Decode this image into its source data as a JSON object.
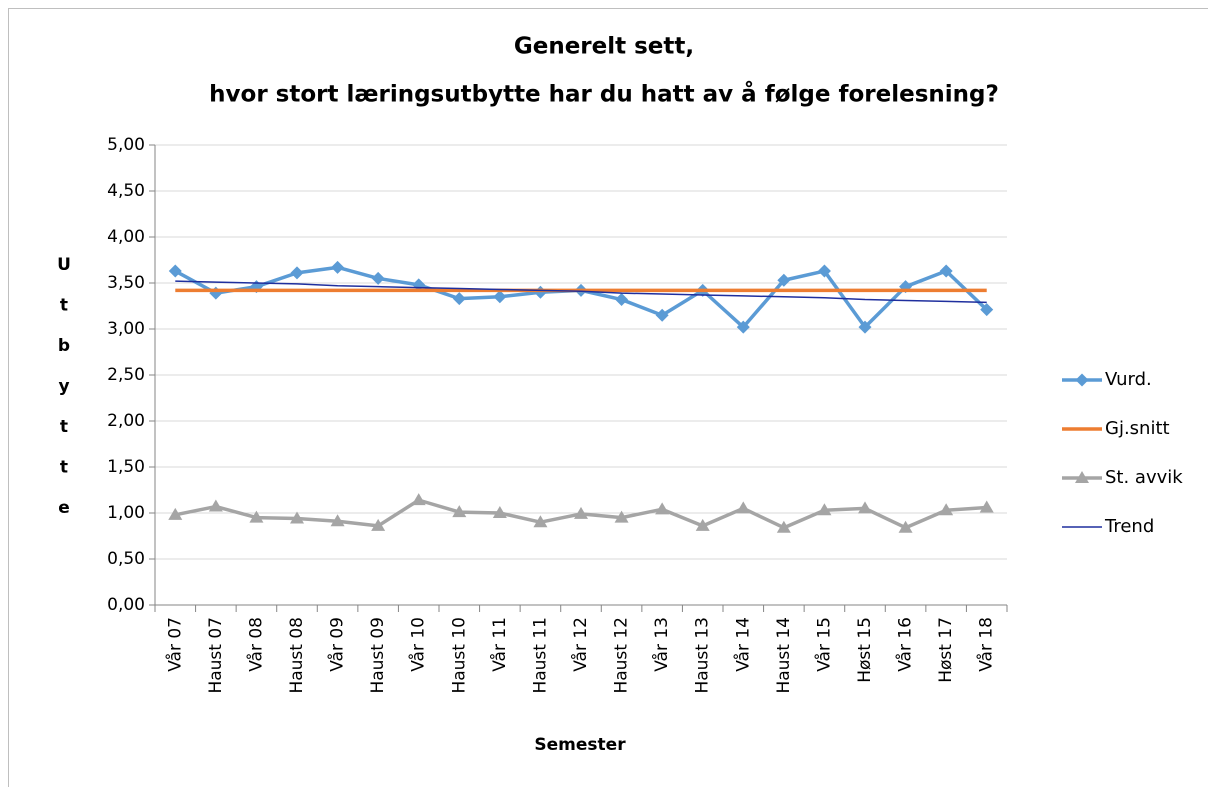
{
  "chart_data": {
    "type": "line",
    "title": [
      "Generelt sett,",
      "hvor stort læringsutbytte har du hatt av å følge forelesning?"
    ],
    "x_label": "Semester",
    "y_label": "Utbytte",
    "categories": [
      "Vår 07",
      "Haust 07",
      "Vår 08",
      "Haust 08",
      "Vår 09",
      "Haust 09",
      "Vår 10",
      "Haust 10",
      "Vår 11",
      "Haust 11",
      "Vår 12",
      "Haust 12",
      "Vår 13",
      "Haust 13",
      "Vår 14",
      "Haust 14",
      "Vår 15",
      "Høst 15",
      "Vår 16",
      "Høst 17",
      "Vår 18"
    ],
    "series": [
      {
        "name": "Vurd.",
        "color": "#5b9bd5",
        "marker": "diamond",
        "width": 3.5,
        "values": [
          3.63,
          3.39,
          3.46,
          3.61,
          3.67,
          3.55,
          3.48,
          3.33,
          3.35,
          3.4,
          3.42,
          3.32,
          3.15,
          3.42,
          3.02,
          3.53,
          3.63,
          3.02,
          3.46,
          3.63,
          3.21
        ]
      },
      {
        "name": "Gj.snitt",
        "color": "#ed7d31",
        "marker": "none",
        "width": 3.5,
        "values": [
          3.42,
          3.42,
          3.42,
          3.42,
          3.42,
          3.42,
          3.42,
          3.42,
          3.42,
          3.42,
          3.42,
          3.42,
          3.42,
          3.42,
          3.42,
          3.42,
          3.42,
          3.42,
          3.42,
          3.42,
          3.42
        ]
      },
      {
        "name": "St. avvik",
        "color": "#a5a5a5",
        "marker": "triangle",
        "width": 3.5,
        "values": [
          0.98,
          1.07,
          0.95,
          0.94,
          0.91,
          0.86,
          1.14,
          1.01,
          1.0,
          0.9,
          0.99,
          0.95,
          1.04,
          0.86,
          1.05,
          0.84,
          1.03,
          1.05,
          0.84,
          1.03,
          1.06
        ]
      },
      {
        "name": "Trend",
        "color": "#1f2f9e",
        "marker": "none",
        "width": 1.5,
        "values": [
          3.52,
          3.51,
          3.5,
          3.49,
          3.47,
          3.46,
          3.45,
          3.44,
          3.43,
          3.42,
          3.41,
          3.39,
          3.38,
          3.37,
          3.36,
          3.35,
          3.34,
          3.32,
          3.31,
          3.3,
          3.29
        ]
      }
    ],
    "ylim": [
      0,
      5
    ],
    "yticks": [
      {
        "value": 0,
        "label": "0,00"
      },
      {
        "value": 0.5,
        "label": "0,50"
      },
      {
        "value": 1,
        "label": "1,00"
      },
      {
        "value": 1.5,
        "label": "1,50"
      },
      {
        "value": 2,
        "label": "2,00"
      },
      {
        "value": 2.5,
        "label": "2,50"
      },
      {
        "value": 3,
        "label": "3,00"
      },
      {
        "value": 3.5,
        "label": "3,50"
      },
      {
        "value": 4,
        "label": "4,00"
      },
      {
        "value": 4.5,
        "label": "4,50"
      },
      {
        "value": 5,
        "label": "5,00"
      }
    ],
    "grid": true,
    "legend": "right"
  }
}
